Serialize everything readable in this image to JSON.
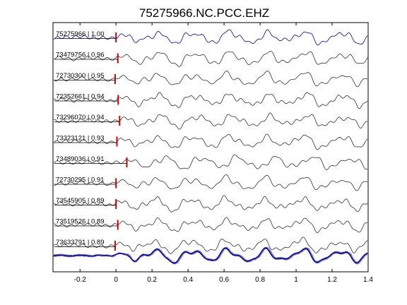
{
  "chart_data": {
    "type": "line",
    "title": "75275966.NC.PCC.EHZ",
    "xlabel": "",
    "ylabel": "",
    "xlim": [
      -0.35,
      1.4
    ],
    "xticks": [
      -0.2,
      0,
      0.2,
      0.4,
      0.6,
      0.8,
      1,
      1.2,
      1.4
    ],
    "xtick_labels": [
      "-0.2",
      "0",
      "0.2",
      "0.4",
      "0.6",
      "0.8",
      "1",
      "1.2",
      "1.4"
    ],
    "grid": false,
    "colors": {
      "reference": "#0000cc",
      "trace": "#333333",
      "overlay": "#888888",
      "pick": "#cc0000",
      "axes": "#000000"
    },
    "series": [
      {
        "name": "75275966 | 1.00",
        "pick_time": 0.0,
        "reference": true
      },
      {
        "name": "73479756 | 0.96",
        "pick_time": 0.01
      },
      {
        "name": "72730300 | 0.95",
        "pick_time": -0.005
      },
      {
        "name": "72352661 | 0.94",
        "pick_time": 0.012
      },
      {
        "name": "73296070 | 0.94",
        "pick_time": 0.02
      },
      {
        "name": "73323121 | 0.93",
        "pick_time": 0.005
      },
      {
        "name": "73489036 | 0.91",
        "pick_time": 0.06
      },
      {
        "name": "72730295 | 0.91",
        "pick_time": 0.0
      },
      {
        "name": "73545905 | 0.89",
        "pick_time": 0.0
      },
      {
        "name": "73519526 | 0.89",
        "pick_time": 0.01
      },
      {
        "name": "73633791 | 0.89",
        "pick_time": -0.005
      }
    ]
  }
}
